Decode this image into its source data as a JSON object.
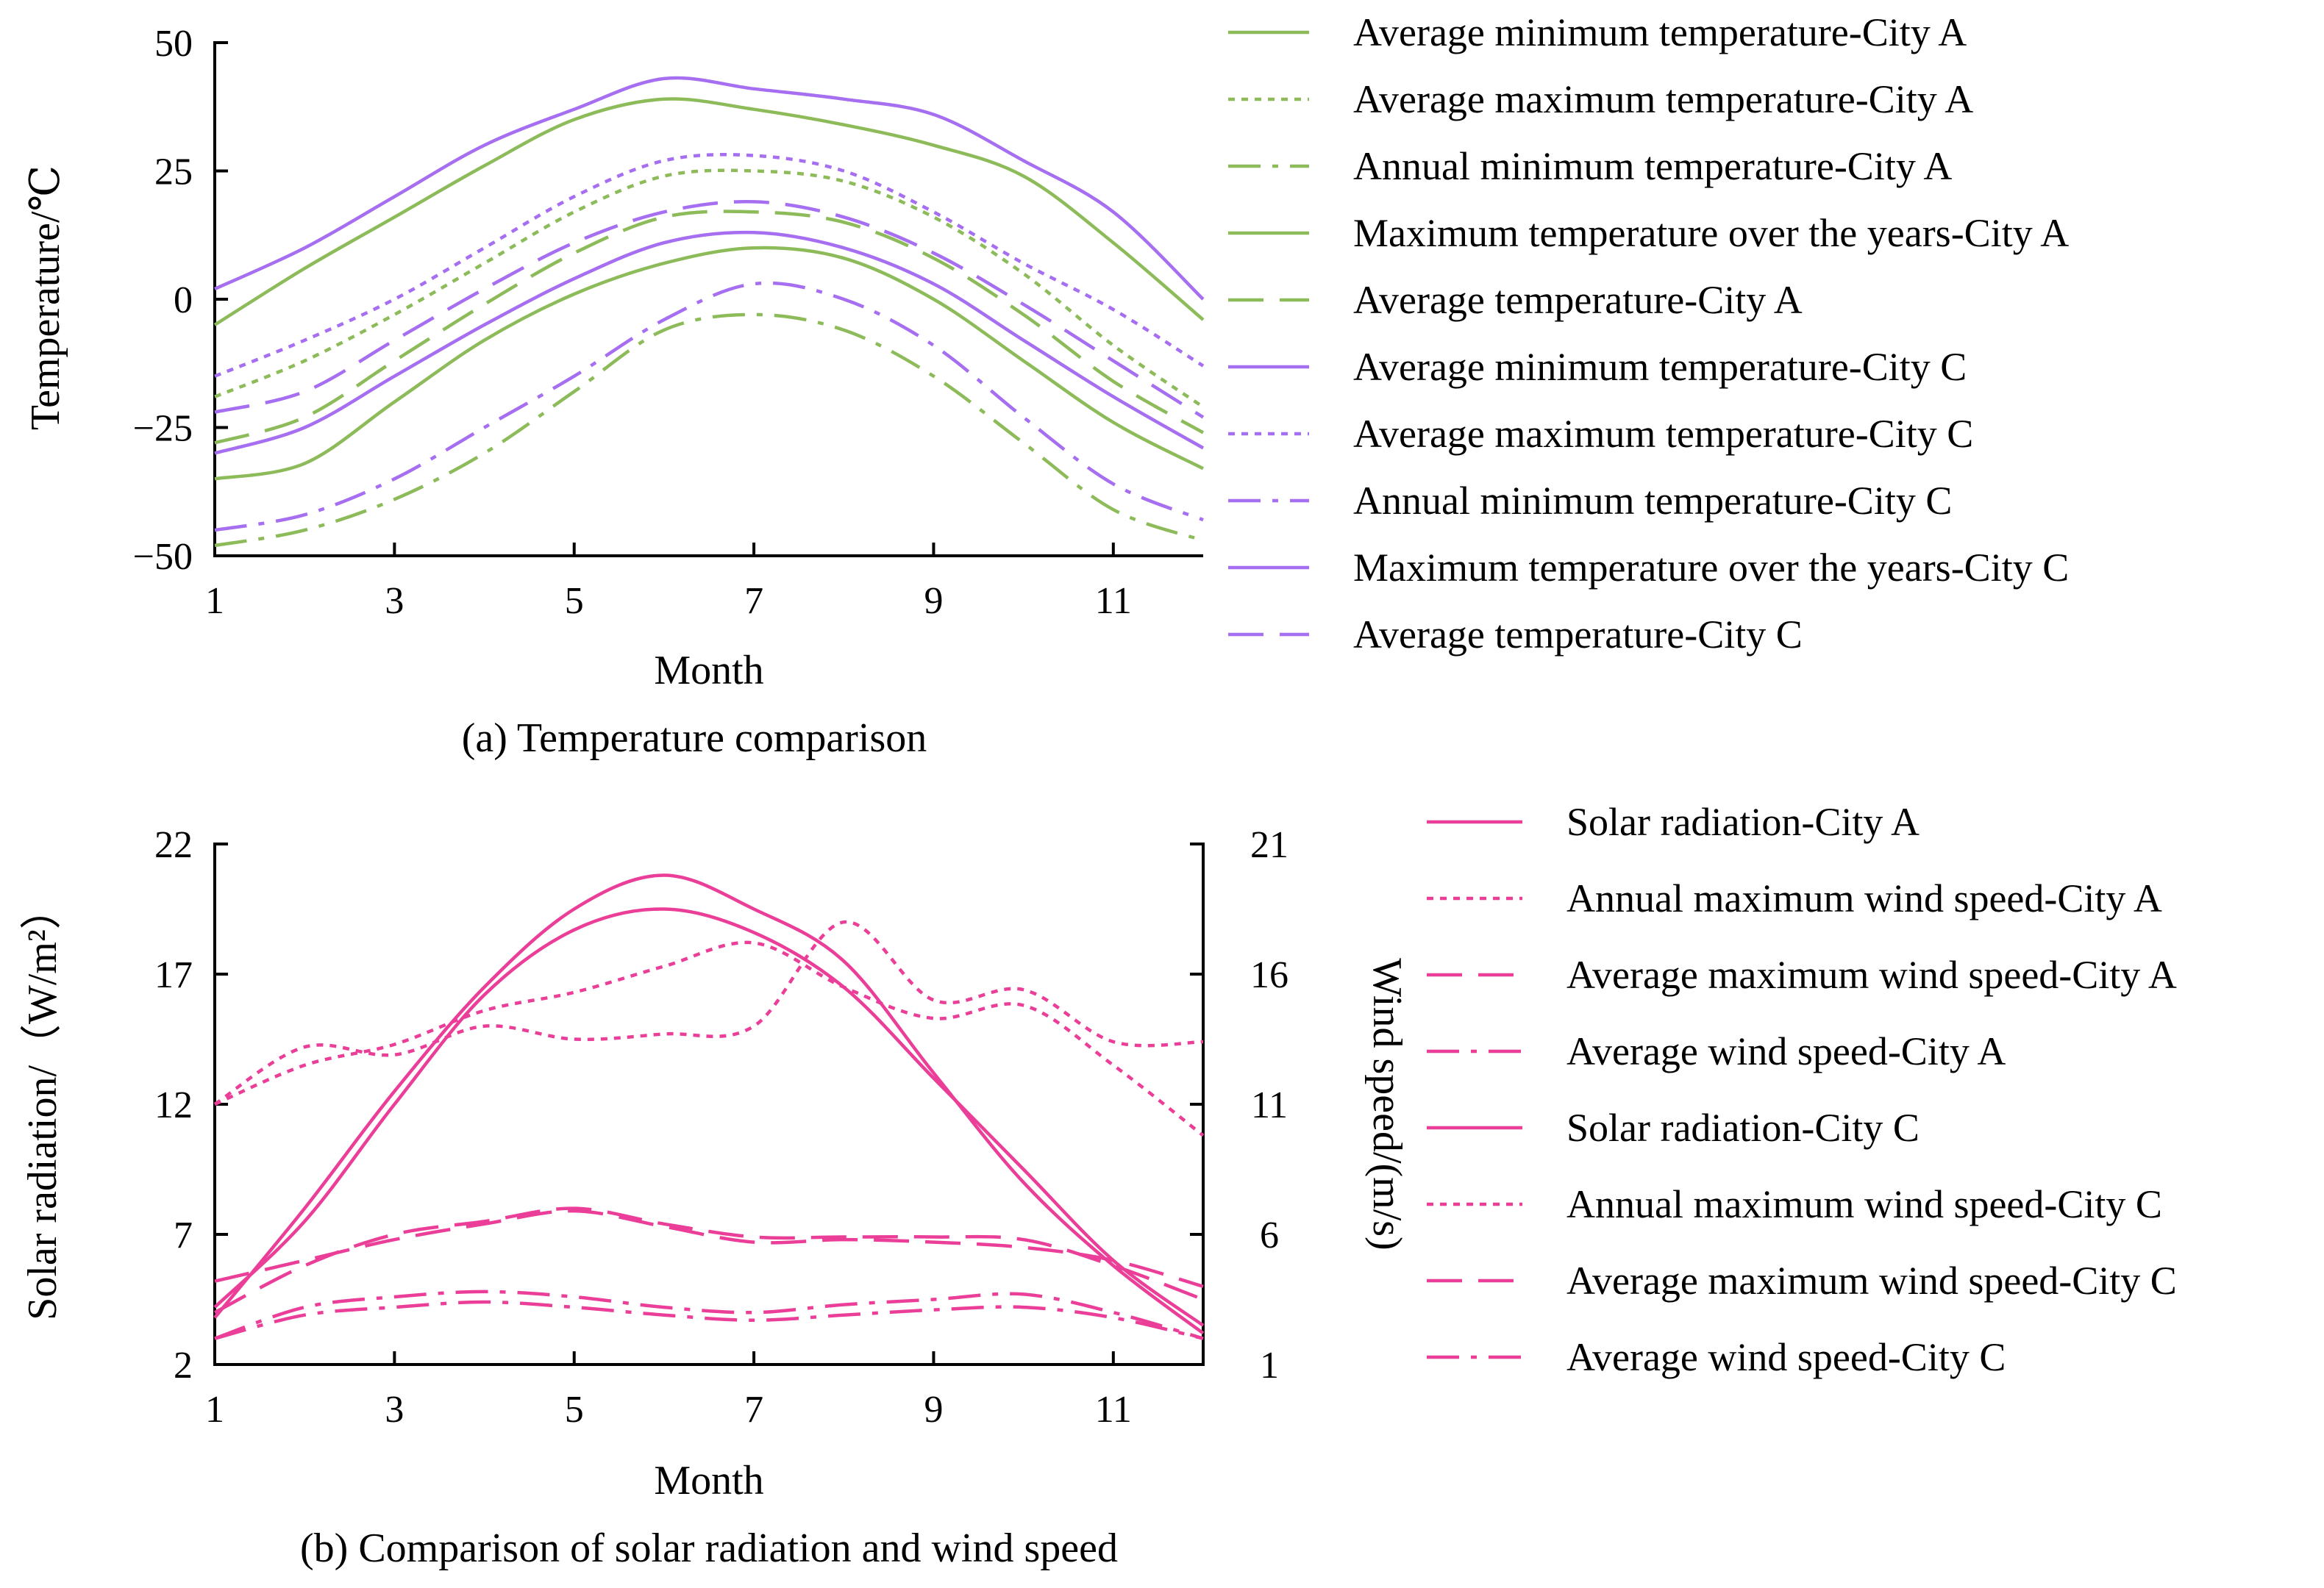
{
  "colors": {
    "green": "#8dbb5a",
    "purple": "#a66ef0",
    "pink": "#ea3e98"
  },
  "chart_data": [
    {
      "id": "temperature",
      "type": "line",
      "caption": "(a) Temperature comparison",
      "xlabel": "Month",
      "ylabel": "Temperature/℃",
      "xlim": [
        1,
        12
      ],
      "ylim": [
        -50,
        50
      ],
      "xticks": [
        "1",
        "3",
        "5",
        "7",
        "9",
        "11"
      ],
      "xtick_values": [
        1,
        3,
        5,
        7,
        9,
        11
      ],
      "yticks": [
        "50",
        "25",
        "0",
        "−25",
        "−50"
      ],
      "ytick_values": [
        50,
        25,
        0,
        -25,
        -50
      ],
      "legend_position": "right",
      "x": [
        1,
        2,
        3,
        4,
        5,
        6,
        7,
        8,
        9,
        10,
        11,
        12
      ],
      "series": [
        {
          "name": "Average minimum temperature-City A",
          "color": "green",
          "style": "solid",
          "values": [
            -5,
            6,
            16,
            26,
            35,
            39,
            37,
            34,
            30,
            24,
            11,
            -4
          ]
        },
        {
          "name": "Average maximum temperature-City A",
          "color": "green",
          "style": "dotted",
          "values": [
            -19,
            -12,
            -3,
            7,
            17,
            24,
            25,
            23,
            16,
            5,
            -9,
            -21
          ]
        },
        {
          "name": "Annual minimum temperature-City A",
          "color": "green",
          "style": "dashdot",
          "values": [
            -48,
            -45,
            -39,
            -30,
            -18,
            -6,
            -3,
            -6,
            -15,
            -28,
            -41,
            -47
          ]
        },
        {
          "name": "Maximum temperature over the years-City A",
          "color": "green",
          "style": "solid",
          "values": [
            -35,
            -32,
            -20,
            -8,
            1,
            7,
            10,
            8,
            0,
            -12,
            -24,
            -33
          ]
        },
        {
          "name": "Average temperature-City A",
          "color": "green",
          "style": "dashed",
          "values": [
            -28,
            -23,
            -12,
            -1,
            9,
            16,
            17,
            15,
            8,
            -3,
            -16,
            -26
          ]
        },
        {
          "name": "Average minimum temperature-City C",
          "color": "purple",
          "style": "solid",
          "values": [
            2,
            10,
            20,
            30,
            37,
            43,
            41,
            39,
            36,
            27,
            17,
            0
          ]
        },
        {
          "name": "Average maximum temperature-City C",
          "color": "purple",
          "style": "dotted",
          "values": [
            -15,
            -8,
            0,
            10,
            20,
            27,
            28,
            25,
            17,
            7,
            -2,
            -13
          ]
        },
        {
          "name": "Annual minimum temperature-City C",
          "color": "purple",
          "style": "dashdot",
          "values": [
            -45,
            -42,
            -35,
            -25,
            -15,
            -4,
            3,
            0,
            -9,
            -23,
            -36,
            -43
          ]
        },
        {
          "name": "Maximum temperature over the years-City C",
          "color": "purple",
          "style": "solid",
          "values": [
            -30,
            -25,
            -15,
            -5,
            4,
            11,
            13,
            10,
            3,
            -8,
            -19,
            -29
          ]
        },
        {
          "name": "Average temperature-City C",
          "color": "purple",
          "style": "dashed",
          "values": [
            -22,
            -18,
            -8,
            2,
            11,
            17,
            19,
            16,
            9,
            -1,
            -12,
            -23
          ]
        }
      ]
    },
    {
      "id": "solar_wind",
      "type": "line",
      "caption": "(b) Comparison of solar radiation and wind speed",
      "xlabel": "Month",
      "ylabel": "Solar radiation/（W/m²）",
      "ylabel_right": "Wind speed/(m/s)",
      "xlim": [
        1,
        12
      ],
      "ylim": [
        2,
        22
      ],
      "ylim_right": [
        1,
        21
      ],
      "xticks": [
        "1",
        "3",
        "5",
        "7",
        "9",
        "11"
      ],
      "xtick_values": [
        1,
        3,
        5,
        7,
        9,
        11
      ],
      "yticks": [
        "22",
        "17",
        "12",
        "7",
        "2"
      ],
      "ytick_values": [
        22,
        17,
        12,
        7,
        2
      ],
      "yticks_right": [
        "21",
        "16",
        "11",
        "6",
        "1"
      ],
      "ytick_values_right": [
        21,
        16,
        11,
        6,
        1
      ],
      "legend_position": "right",
      "x": [
        1,
        2,
        3,
        4,
        5,
        6,
        7,
        8,
        9,
        10,
        11,
        12
      ],
      "series": [
        {
          "name": "Solar radiation-City A",
          "color": "pink",
          "style": "solid",
          "axis": "left",
          "values": [
            4.2,
            7.5,
            12.0,
            16.2,
            18.7,
            19.5,
            18.6,
            16.5,
            13.0,
            9.5,
            6.0,
            3.5
          ]
        },
        {
          "name": "Annual maximum wind speed-City A",
          "color": "pink",
          "style": "dotted",
          "axis": "right",
          "values": [
            11.0,
            13.2,
            12.9,
            14.0,
            13.5,
            13.7,
            14.0,
            18.0,
            15.0,
            15.4,
            13.4,
            13.4
          ]
        },
        {
          "name": "Average maximum wind speed-City A",
          "color": "pink",
          "style": "dashed",
          "axis": "left",
          "values": [
            4.0,
            5.8,
            7.0,
            7.5,
            8.0,
            7.4,
            6.9,
            6.9,
            6.9,
            6.8,
            5.8,
            4.5
          ]
        },
        {
          "name": "Average wind speed-City A",
          "color": "pink",
          "style": "dashdot",
          "axis": "right",
          "values": [
            2.0,
            3.2,
            3.6,
            3.8,
            3.6,
            3.2,
            3.0,
            3.3,
            3.5,
            3.7,
            3.0,
            2.0
          ]
        },
        {
          "name": "Solar radiation-City C",
          "color": "pink",
          "style": "solid",
          "axis": "left",
          "values": [
            3.8,
            8.0,
            12.5,
            16.5,
            19.5,
            20.8,
            19.5,
            17.5,
            13.2,
            9.0,
            5.8,
            3.2
          ]
        },
        {
          "name": "Annual maximum wind speed-City C",
          "color": "pink",
          "style": "dotted",
          "axis": "right",
          "values": [
            11.0,
            12.5,
            13.3,
            14.6,
            15.3,
            16.3,
            17.2,
            15.5,
            14.3,
            14.8,
            12.5,
            9.8
          ]
        },
        {
          "name": "Average maximum wind speed-City C",
          "color": "pink",
          "style": "dashed",
          "axis": "left",
          "values": [
            5.2,
            6.0,
            6.8,
            7.4,
            7.9,
            7.3,
            6.7,
            6.8,
            6.7,
            6.5,
            6.0,
            5.0
          ]
        },
        {
          "name": "Average wind speed-City C",
          "color": "pink",
          "style": "dashdot",
          "axis": "left",
          "values": [
            3.0,
            3.9,
            4.2,
            4.4,
            4.2,
            3.9,
            3.7,
            3.9,
            4.1,
            4.2,
            3.8,
            3.0
          ]
        }
      ]
    }
  ]
}
